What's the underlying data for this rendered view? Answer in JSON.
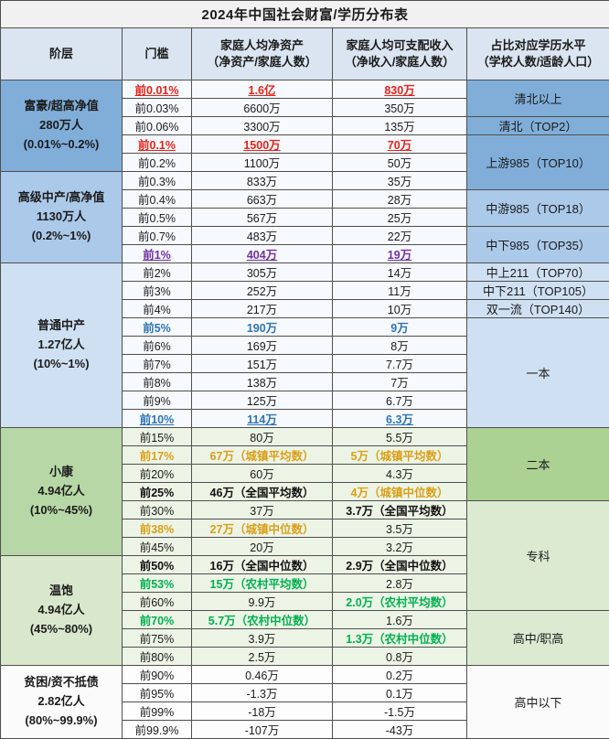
{
  "title": "2024年中国社会财富/学历分布表",
  "header": {
    "class": "阶层",
    "threshold": "门槛",
    "assets": [
      "家庭人均净资产",
      "（净资产/家庭人数）"
    ],
    "income": [
      "家庭人均可支配收入",
      "（净收入/家庭人数）"
    ],
    "education": [
      "占比对应学历水平",
      "（学校人数/适龄人口）"
    ]
  },
  "colors": {
    "rich_blue": "#81aed9",
    "upper_blue": "#abc9e9",
    "middle_blue": "#cfe0f2",
    "xiaokang_green": "#b7d7a6",
    "wenbao_green": "#d9e8cc",
    "poor_white": "#fbfbfb",
    "erben_green": "#abd193",
    "zhuanke_green": "#dcead2",
    "header_bg": "#dbe5f1",
    "red": "#e2231a",
    "purple": "#7030a0",
    "blue": "#2e74b5",
    "gold": "#d9a018",
    "green": "#00b050",
    "border": "#4f4f4f"
  },
  "class_groups": [
    {
      "lines": [
        "富豪/超高净值",
        "280万人",
        "(0.01%~0.2%)"
      ],
      "span": 5,
      "bg": "#81aed9",
      "cell_bg": "#f6f9fd"
    },
    {
      "lines": [
        "高级中产/高净值",
        "1130万人",
        "(0.2%~1%)"
      ],
      "span": 5,
      "bg": "#abc9e9",
      "cell_bg": "#f6f9fd"
    },
    {
      "lines": [
        "普通中产",
        "1.27亿人",
        "(10%~1%)"
      ],
      "span": 9,
      "bg": "#cfe0f2",
      "cell_bg": "#f6f9fd"
    },
    {
      "lines": [
        "小康",
        "4.94亿人",
        "(10%~45%)"
      ],
      "span": 7,
      "bg": "#b7d7a6",
      "cell_bg": "#ecf4e5"
    },
    {
      "lines": [
        "温饱",
        "4.94亿人",
        "(45%~80%)"
      ],
      "span": 6,
      "bg": "#d9e8cc",
      "cell_bg": "#ecf4e5"
    },
    {
      "lines": [
        "贫困/资不抵债",
        "2.82亿人",
        "(80%~99.9%)"
      ],
      "span": 4,
      "bg": "#fbfbfb",
      "cell_bg": "#fdfdfd"
    }
  ],
  "education_groups": [
    {
      "label": "清北以上",
      "span": 2,
      "bg": "#81aed9"
    },
    {
      "label": "清北（TOP2）",
      "span": 1,
      "bg": "#81aed9"
    },
    {
      "label": "上游985（TOP10）",
      "span": 3,
      "bg": "#81aed9"
    },
    {
      "label": "中游985（TOP18）",
      "span": 2,
      "bg": "#abc9e9"
    },
    {
      "label": "中下985（TOP35）",
      "span": 2,
      "bg": "#abc9e9"
    },
    {
      "label": "中上211（TOP70）",
      "span": 1,
      "bg": "#cfe0f2"
    },
    {
      "label": "中下211（TOP105）",
      "span": 1,
      "bg": "#cfe0f2"
    },
    {
      "label": "双一流（TOP140）",
      "span": 1,
      "bg": "#cfe0f2"
    },
    {
      "label": "一本",
      "span": 6,
      "bg": "#cfe0f2"
    },
    {
      "label": "二本",
      "span": 4,
      "bg": "#abd193"
    },
    {
      "label": "专科",
      "span": 6,
      "bg": "#dcead2"
    },
    {
      "label": "高中/职高",
      "span": 3,
      "bg": "#dcead2"
    },
    {
      "label": "高中以下",
      "span": 4,
      "bg": "#fbfbfb"
    }
  ],
  "rows": [
    {
      "t": "前0.01%",
      "a": "1.6亿",
      "i": "830万",
      "s": [
        "r",
        "r",
        "r"
      ]
    },
    {
      "t": "前0.03%",
      "a": "6600万",
      "i": "350万",
      "s": [
        "",
        "",
        ""
      ]
    },
    {
      "t": "前0.06%",
      "a": "3300万",
      "i": "135万",
      "s": [
        "",
        "",
        ""
      ]
    },
    {
      "t": "前0.1%",
      "a": "1500万",
      "i": "70万",
      "s": [
        "r",
        "r",
        "r"
      ]
    },
    {
      "t": "前0.2%",
      "a": "1100万",
      "i": "50万",
      "s": [
        "",
        "",
        ""
      ]
    },
    {
      "t": "前0.3%",
      "a": "833万",
      "i": "35万",
      "s": [
        "",
        "",
        ""
      ]
    },
    {
      "t": "前0.4%",
      "a": "663万",
      "i": "28万",
      "s": [
        "",
        "",
        ""
      ]
    },
    {
      "t": "前0.5%",
      "a": "567万",
      "i": "25万",
      "s": [
        "",
        "",
        ""
      ]
    },
    {
      "t": "前0.7%",
      "a": "483万",
      "i": "22万",
      "s": [
        "",
        "",
        ""
      ]
    },
    {
      "t": "前1%",
      "a": "404万",
      "i": "19万",
      "s": [
        "p",
        "p",
        "p"
      ]
    },
    {
      "t": "前2%",
      "a": "305万",
      "i": "14万",
      "s": [
        "",
        "",
        ""
      ]
    },
    {
      "t": "前3%",
      "a": "252万",
      "i": "11万",
      "s": [
        "",
        "",
        ""
      ]
    },
    {
      "t": "前4%",
      "a": "217万",
      "i": "10万",
      "s": [
        "",
        "",
        ""
      ]
    },
    {
      "t": "前5%",
      "a": "190万",
      "i": "9万",
      "s": [
        "b",
        "b",
        "b"
      ]
    },
    {
      "t": "前6%",
      "a": "169万",
      "i": "8万",
      "s": [
        "",
        "",
        ""
      ]
    },
    {
      "t": "前7%",
      "a": "151万",
      "i": "7.7万",
      "s": [
        "",
        "",
        ""
      ]
    },
    {
      "t": "前8%",
      "a": "138万",
      "i": "7万",
      "s": [
        "",
        "",
        ""
      ]
    },
    {
      "t": "前9%",
      "a": "125万",
      "i": "6.7万",
      "s": [
        "",
        "",
        ""
      ]
    },
    {
      "t": "前10%",
      "a": "114万",
      "i": "6.3万",
      "s": [
        "bu",
        "bu",
        "bu"
      ]
    },
    {
      "t": "前15%",
      "a": "80万",
      "i": "5.5万",
      "s": [
        "",
        "",
        ""
      ]
    },
    {
      "t": "前17%",
      "a": "67万（城镇平均数）",
      "i": "5万（城镇平均数）",
      "s": [
        "g",
        "g",
        "g"
      ]
    },
    {
      "t": "前20%",
      "a": "60万",
      "i": "4.3万",
      "s": [
        "",
        "",
        ""
      ]
    },
    {
      "t": "前25%",
      "a": "46万（全国平均数）",
      "i": "4万（城镇中位数）",
      "s": [
        "n",
        "n",
        "g"
      ]
    },
    {
      "t": "前30%",
      "a": "37万",
      "i": "3.7万（全国平均数）",
      "s": [
        "",
        "",
        "n"
      ]
    },
    {
      "t": "前38%",
      "a": "27万（城镇中位数）",
      "i": "3.5万",
      "s": [
        "g",
        "g",
        ""
      ]
    },
    {
      "t": "前45%",
      "a": "20万",
      "i": "3.2万",
      "s": [
        "",
        "",
        ""
      ]
    },
    {
      "t": "前50%",
      "a": "16万（全国中位数）",
      "i": "2.9万（全国中位数）",
      "s": [
        "n",
        "n",
        "n"
      ]
    },
    {
      "t": "前53%",
      "a": "15万（农村平均数）",
      "i": "2.8万",
      "s": [
        "e",
        "e",
        ""
      ]
    },
    {
      "t": "前60%",
      "a": "9.9万",
      "i": "2.0万（农村平均数）",
      "s": [
        "",
        "",
        "e"
      ]
    },
    {
      "t": "前70%",
      "a": "5.7万（农村中位数）",
      "i": "1.6万",
      "s": [
        "e",
        "e",
        ""
      ]
    },
    {
      "t": "前75%",
      "a": "3.9万",
      "i": "1.3万（农村中位数）",
      "s": [
        "",
        "",
        "e"
      ]
    },
    {
      "t": "前80%",
      "a": "2.5万",
      "i": "0.8万",
      "s": [
        "",
        "",
        ""
      ]
    },
    {
      "t": "前90%",
      "a": "0.46万",
      "i": "0.2万",
      "s": [
        "",
        "",
        ""
      ]
    },
    {
      "t": "前95%",
      "a": "-1.3万",
      "i": "0.1万",
      "s": [
        "",
        "",
        ""
      ]
    },
    {
      "t": "前99%",
      "a": "-18万",
      "i": "-1.5万",
      "s": [
        "",
        "",
        ""
      ]
    },
    {
      "t": "前99.9%",
      "a": "-107万",
      "i": "-43万",
      "s": [
        "",
        "",
        ""
      ]
    }
  ]
}
